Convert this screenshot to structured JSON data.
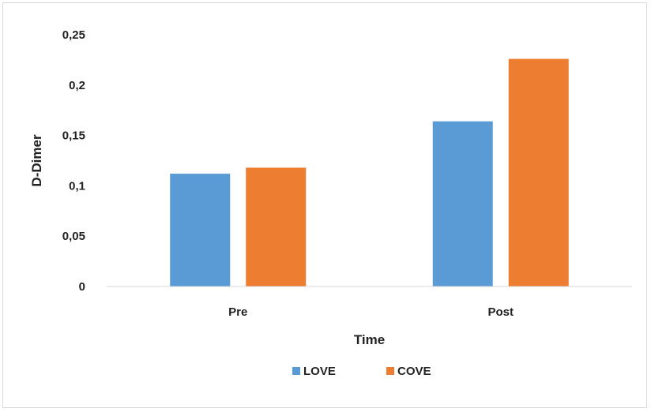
{
  "chart_data": {
    "type": "bar",
    "title": "",
    "xlabel": "Time",
    "ylabel": "D-Dimer",
    "categories": [
      "Pre",
      "Post"
    ],
    "series": [
      {
        "name": "LOVE",
        "color": "#5b9bd5",
        "values": [
          0.112,
          0.164
        ]
      },
      {
        "name": "COVE",
        "color": "#ed7d31",
        "values": [
          0.118,
          0.226
        ]
      }
    ],
    "ylim": [
      0,
      0.25
    ],
    "yticks": [
      0,
      0.05,
      0.1,
      0.15,
      0.2,
      0.25
    ],
    "ytick_labels": [
      "0",
      "0,05",
      "0,1",
      "0,15",
      "0,2",
      "0,25"
    ],
    "grid": false,
    "legend_position": "bottom"
  }
}
